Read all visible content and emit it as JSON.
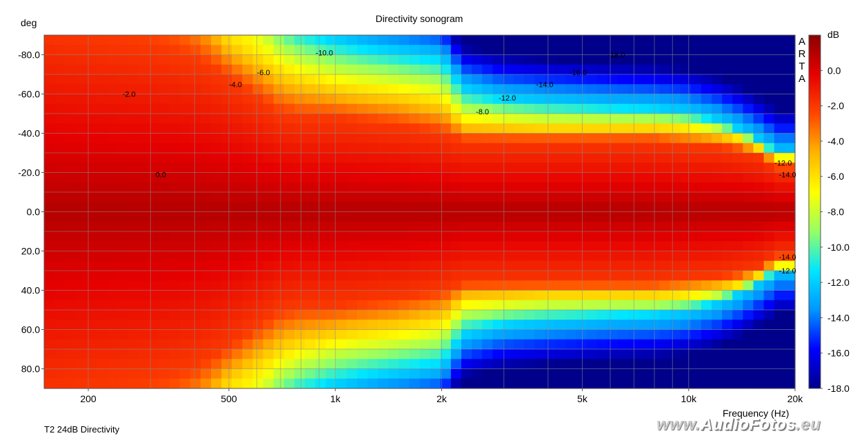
{
  "chart_data": {
    "type": "heatmap",
    "title": "Directivity sonogram",
    "xlabel": "Frequency (Hz)",
    "ylabel": "deg",
    "x_scale": "log",
    "xlim": [
      150,
      20000
    ],
    "ylim": [
      -90,
      90
    ],
    "x_ticks": [
      {
        "value": 200,
        "label": "200"
      },
      {
        "value": 500,
        "label": "500"
      },
      {
        "value": 1000,
        "label": "1k"
      },
      {
        "value": 2000,
        "label": "2k"
      },
      {
        "value": 5000,
        "label": "5k"
      },
      {
        "value": 10000,
        "label": "10k"
      },
      {
        "value": 20000,
        "label": "20k"
      }
    ],
    "y_ticks": [
      {
        "value": -80,
        "label": "-80.0"
      },
      {
        "value": -60,
        "label": "-60.0"
      },
      {
        "value": -40,
        "label": "-40.0"
      },
      {
        "value": -20,
        "label": "-20.0"
      },
      {
        "value": 0,
        "label": "0.0"
      },
      {
        "value": 20,
        "label": "20.0"
      },
      {
        "value": 40,
        "label": "40.0"
      },
      {
        "value": 60,
        "label": "60.0"
      },
      {
        "value": 80,
        "label": "80.0"
      }
    ],
    "colorbar": {
      "unit": "dB",
      "range": [
        -18,
        2
      ],
      "ticks": [
        {
          "value": 0,
          "label": "0.0"
        },
        {
          "value": -2,
          "label": "-2.0"
        },
        {
          "value": -4,
          "label": "-4.0"
        },
        {
          "value": -6,
          "label": "-6.0"
        },
        {
          "value": -8,
          "label": "-8.0"
        },
        {
          "value": -10,
          "label": "-10.0"
        },
        {
          "value": -12,
          "label": "-12.0"
        },
        {
          "value": -14,
          "label": "-14.0"
        },
        {
          "value": -16,
          "label": "-16.0"
        },
        {
          "value": -18,
          "label": "-18.0"
        }
      ],
      "colors": [
        "#00008b",
        "#0000ff",
        "#0096ff",
        "#00e6ff",
        "#96ff64",
        "#ffff00",
        "#ffb400",
        "#ff4600",
        "#e60000",
        "#8b0000"
      ]
    },
    "beamwidth_contours": {
      "frequencies": [
        150,
        200,
        300,
        400,
        500,
        600,
        700,
        800,
        1000,
        1200,
        1500,
        2000,
        2300,
        3000,
        4000,
        5000,
        6000,
        8000,
        10000,
        12000,
        14000,
        16000,
        18000,
        20000
      ],
      "minus2_deg": [
        95,
        90,
        85,
        78,
        68,
        58,
        50,
        48,
        48,
        46,
        44,
        40,
        36,
        36,
        36,
        36,
        36,
        36,
        34,
        33,
        31,
        28,
        22,
        22
      ],
      "minus6_deg": [
        180,
        180,
        140,
        110,
        88,
        80,
        72,
        68,
        64,
        62,
        60,
        56,
        45,
        44,
        43,
        43,
        43,
        43,
        42,
        40,
        37,
        32,
        27,
        27
      ],
      "minus12_deg": [
        180,
        180,
        180,
        180,
        180,
        120,
        100,
        94,
        88,
        85,
        82,
        79,
        63,
        58,
        56,
        55,
        54,
        53,
        51,
        47,
        42,
        36,
        30,
        30
      ]
    },
    "contour_labels": [
      {
        "f": 250,
        "deg": -60,
        "text": "-2.0"
      },
      {
        "f": 310,
        "deg": -19,
        "text": "0.0"
      },
      {
        "f": 500,
        "deg": -65,
        "text": "-4.0"
      },
      {
        "f": 600,
        "deg": -71,
        "text": "-6.0"
      },
      {
        "f": 880,
        "deg": -81,
        "text": "-10.0"
      },
      {
        "f": 2500,
        "deg": -51,
        "text": "-8.0"
      },
      {
        "f": 2900,
        "deg": -58,
        "text": "-12.0"
      },
      {
        "f": 3700,
        "deg": -65,
        "text": "-14.0"
      },
      {
        "f": 4600,
        "deg": -71,
        "text": "-16.0"
      },
      {
        "f": 5900,
        "deg": -80,
        "text": "-18.0"
      },
      {
        "f": 17500,
        "deg": -25,
        "text": "-12.0"
      },
      {
        "f": 18000,
        "deg": -19,
        "text": "-14.0"
      },
      {
        "f": 18000,
        "deg": 23,
        "text": "-14.0"
      },
      {
        "f": 18000,
        "deg": 30,
        "text": "-12.0"
      }
    ],
    "grid": true,
    "legend": "colorbar-right"
  },
  "arta_letters": [
    "A",
    "R",
    "T",
    "A"
  ],
  "caption": "T2 24dB Directivity",
  "watermark": {
    "prefix": "www.",
    "brand": "AudioFotos",
    "suffix": ".eu"
  }
}
